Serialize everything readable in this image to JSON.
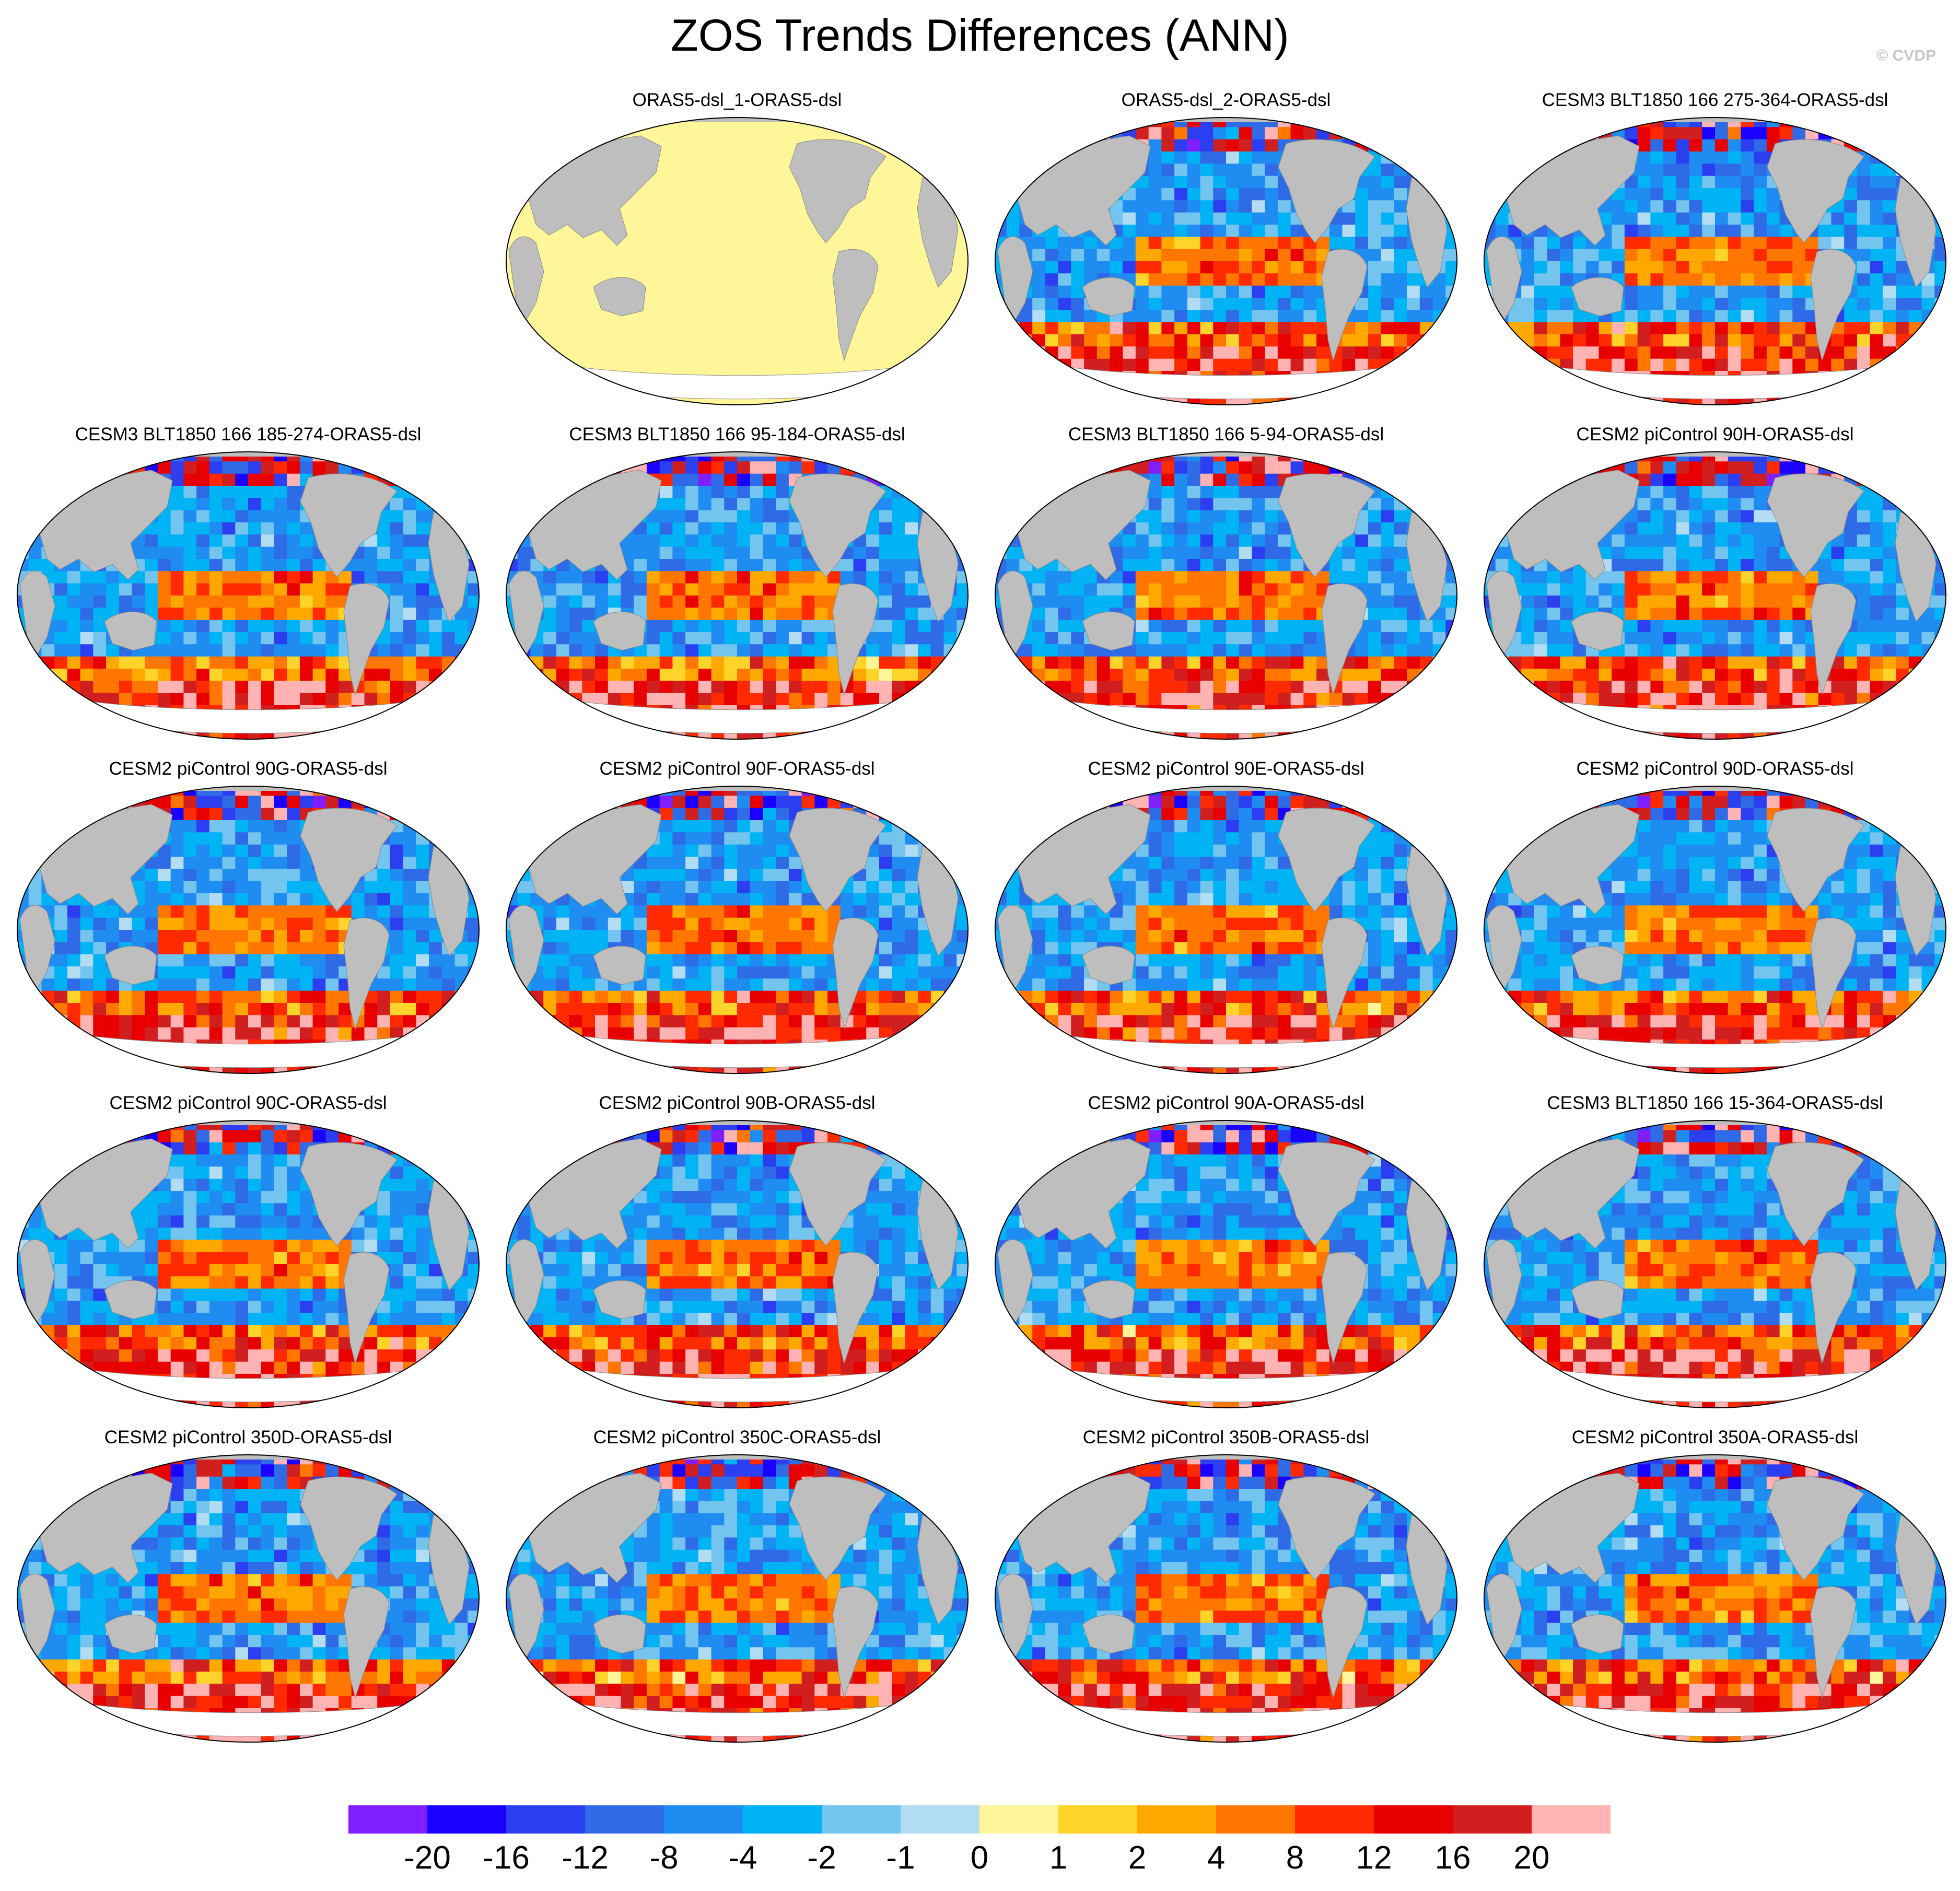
{
  "title": "ZOS Trends Differences (ANN)",
  "watermark": "© CVDP",
  "panels": [
    {
      "title": "ORAS5-dsl_1-ORAS5-dsl",
      "fill": "uniform"
    },
    {
      "title": "ORAS5-dsl_2-ORAS5-dsl",
      "fill": "pattern"
    },
    {
      "title": "CESM3 BLT1850 166 275-364-ORAS5-dsl",
      "fill": "pattern"
    },
    {
      "title": "CESM3 BLT1850 166 185-274-ORAS5-dsl",
      "fill": "pattern"
    },
    {
      "title": "CESM3 BLT1850 166 95-184-ORAS5-dsl",
      "fill": "pattern"
    },
    {
      "title": "CESM3 BLT1850 166 5-94-ORAS5-dsl",
      "fill": "pattern"
    },
    {
      "title": "CESM2 piControl 90H-ORAS5-dsl",
      "fill": "pattern"
    },
    {
      "title": "CESM2 piControl 90G-ORAS5-dsl",
      "fill": "pattern"
    },
    {
      "title": "CESM2 piControl 90F-ORAS5-dsl",
      "fill": "pattern"
    },
    {
      "title": "CESM2 piControl 90E-ORAS5-dsl",
      "fill": "pattern"
    },
    {
      "title": "CESM2 piControl 90D-ORAS5-dsl",
      "fill": "pattern"
    },
    {
      "title": "CESM2 piControl 90C-ORAS5-dsl",
      "fill": "pattern"
    },
    {
      "title": "CESM2 piControl 90B-ORAS5-dsl",
      "fill": "pattern"
    },
    {
      "title": "CESM2 piControl 90A-ORAS5-dsl",
      "fill": "pattern"
    },
    {
      "title": "CESM3 BLT1850 166 15-364-ORAS5-dsl",
      "fill": "pattern"
    },
    {
      "title": "CESM2 piControl 350D-ORAS5-dsl",
      "fill": "pattern"
    },
    {
      "title": "CESM2 piControl 350C-ORAS5-dsl",
      "fill": "pattern"
    },
    {
      "title": "CESM2 piControl 350B-ORAS5-dsl",
      "fill": "pattern"
    },
    {
      "title": "CESM2 piControl 350A-ORAS5-dsl",
      "fill": "pattern"
    }
  ],
  "colorbar": {
    "colors": [
      "#7f1fff",
      "#1a00ff",
      "#2b3ff0",
      "#2f6be6",
      "#1e8cf0",
      "#00b3f5",
      "#73c4ee",
      "#b1dcf2",
      "#fff69a",
      "#ffd42a",
      "#ffa900",
      "#ff7600",
      "#ff2a00",
      "#e80000",
      "#d11f1f",
      "#ffb3b3"
    ],
    "labels": [
      "-20",
      "-16",
      "-12",
      "-8",
      "-4",
      "-2",
      "-1",
      "0",
      "1",
      "2",
      "4",
      "8",
      "12",
      "16",
      "20"
    ]
  },
  "palette": {
    "land": "#bebebe",
    "uniform_ocean": "#fff69a"
  }
}
